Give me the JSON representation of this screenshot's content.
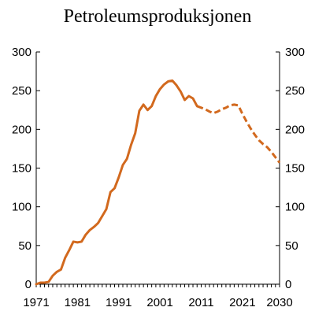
{
  "chart_data": {
    "type": "line",
    "title": "Petroleumsproduksjonen",
    "xlabel": "",
    "ylabel": "",
    "xlim": [
      1971,
      2030
    ],
    "ylim": [
      0,
      300
    ],
    "x_ticks": [
      1971,
      1981,
      1991,
      2001,
      2011,
      2021,
      2030
    ],
    "x_tick_labels": [
      "1971",
      "1981",
      "1991",
      "2001",
      "2011",
      "2021",
      "2030"
    ],
    "y_ticks": [
      0,
      50,
      100,
      150,
      200,
      250,
      300
    ],
    "y_tick_labels": [
      "0",
      "50",
      "100",
      "150",
      "200",
      "250",
      "300"
    ],
    "grid": false,
    "color": "#d2691e",
    "series": [
      {
        "style": "solid",
        "x": [
          1971,
          1972,
          1973,
          1974,
          1975,
          1976,
          1977,
          1978,
          1979,
          1980,
          1981,
          1982,
          1983,
          1984,
          1985,
          1986,
          1987,
          1988,
          1989,
          1990,
          1991,
          1992,
          1993,
          1994,
          1995,
          1996,
          1997,
          1998,
          1999,
          2000,
          2001,
          2002,
          2003,
          2004,
          2005,
          2006,
          2007,
          2008,
          2009,
          2010
        ],
        "y": [
          0,
          2,
          2,
          3,
          11,
          16,
          19,
          34,
          44,
          55,
          54,
          55,
          64,
          70,
          74,
          79,
          88,
          97,
          119,
          124,
          138,
          154,
          162,
          180,
          195,
          224,
          232,
          225,
          230,
          243,
          252,
          258,
          262,
          263,
          257,
          249,
          238,
          243,
          240,
          230
        ]
      },
      {
        "style": "dashed",
        "x": [
          2010,
          2011,
          2012,
          2013,
          2014,
          2015,
          2016,
          2017,
          2018,
          2019,
          2020,
          2021,
          2022,
          2023,
          2024,
          2025,
          2026,
          2027,
          2028,
          2029,
          2030
        ],
        "y": [
          230,
          228,
          226,
          223,
          221,
          223,
          226,
          228,
          231,
          232,
          231,
          220,
          210,
          201,
          193,
          186,
          181,
          177,
          171,
          164,
          157
        ]
      }
    ]
  }
}
